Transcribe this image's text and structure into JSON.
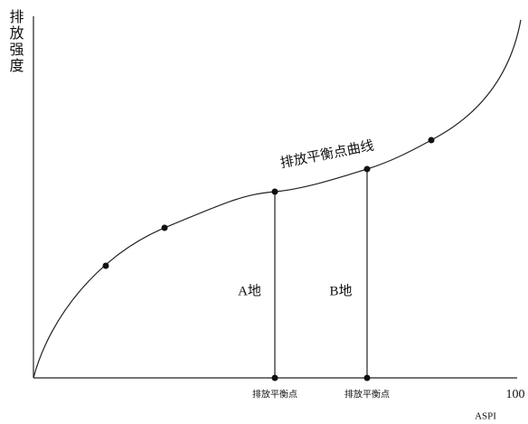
{
  "axes": {
    "y_label": "排放强度",
    "x_label": "ASPI",
    "x_end": "100"
  },
  "curve": {
    "label": "排放平衡点曲线"
  },
  "points": [
    {
      "label": "A地",
      "tick": "排放平衡点"
    },
    {
      "label": "B地",
      "tick": "排放平衡点"
    }
  ]
}
